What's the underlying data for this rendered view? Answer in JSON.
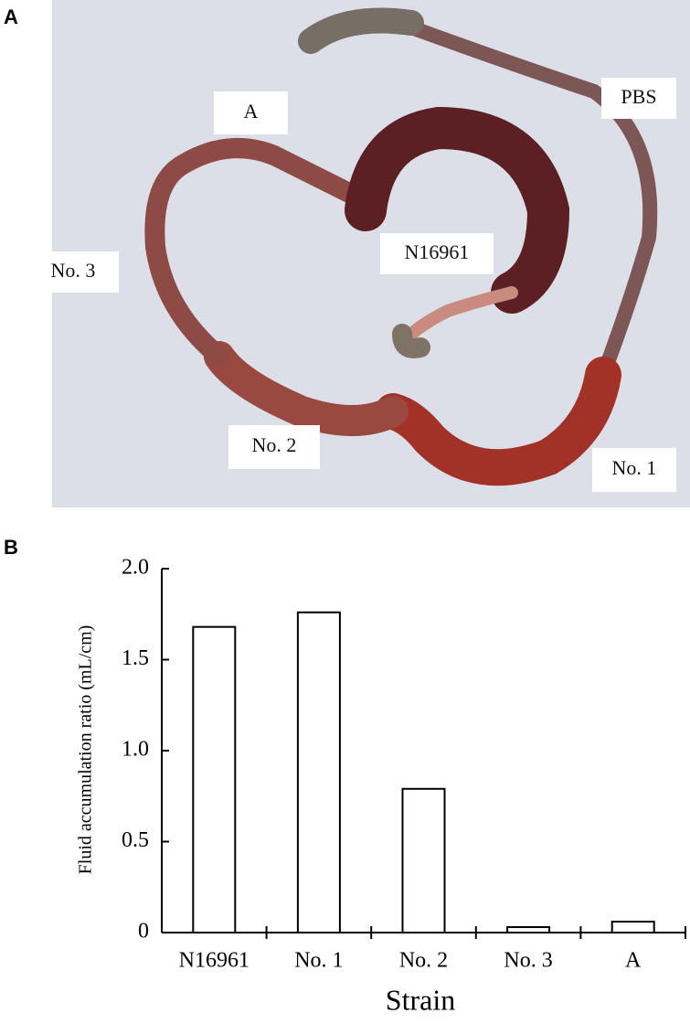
{
  "panels": {
    "a": {
      "label": "A",
      "photo_labels": [
        "A",
        "PBS",
        "N16961",
        "No. 3",
        "No. 2",
        "No. 1"
      ]
    },
    "b": {
      "label": "B"
    }
  },
  "chart_data": {
    "type": "bar",
    "ylabel": "Fluid accumulation ratio  (mL/cm)",
    "xlabel": "Strain",
    "categories": [
      "N16961",
      "No. 1",
      "No. 2",
      "No. 3",
      "A"
    ],
    "values": [
      1.68,
      1.76,
      0.79,
      0.03,
      0.06
    ],
    "color": "#ffffff",
    "ylim": [
      0,
      2.0
    ],
    "yticks": [
      0,
      0.5,
      {
        "value": 1,
        "label": "1.0"
      },
      1.5,
      {
        "value": 2,
        "label": "2.0"
      }
    ]
  }
}
